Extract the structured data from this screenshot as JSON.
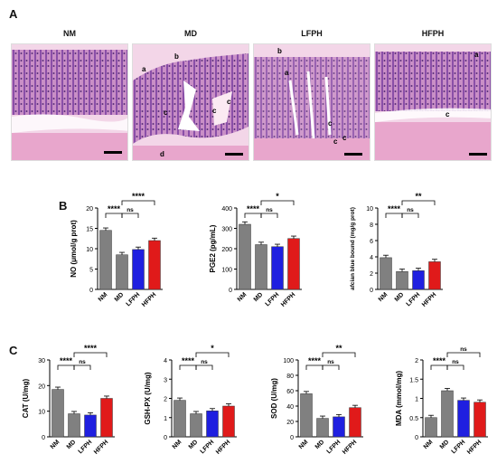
{
  "panels": {
    "A": "A",
    "B": "B",
    "C": "C"
  },
  "histology": [
    {
      "title": "NM",
      "annotations": []
    },
    {
      "title": "MD",
      "annotations": [
        "a",
        "b",
        "c",
        "c",
        "c",
        "d"
      ]
    },
    {
      "title": "LFPH",
      "annotations": [
        "b",
        "a",
        "c",
        "c",
        "c"
      ]
    },
    {
      "title": "HFPH",
      "annotations": [
        "a",
        "c"
      ]
    }
  ],
  "colors": {
    "NM": "#808080",
    "MD": "#808080",
    "LFPH": "#1f1fe0",
    "HFPH": "#e01a1a",
    "tissue_pink": "#e9a9cf",
    "tissue_purple": "#8a4fa8"
  },
  "chart_data": [
    {
      "type": "bar",
      "panel": "B",
      "categories": [
        "NM",
        "MD",
        "LFPH",
        "HFPH"
      ],
      "values": [
        14.5,
        8.5,
        9.8,
        12
      ],
      "ylabel": "NO (μmol/g prot)",
      "yticks": [
        0,
        5,
        10,
        15,
        20
      ],
      "ylim": [
        0,
        20
      ],
      "significance": [
        {
          "from": "NM",
          "to": "MD",
          "label": "****"
        },
        {
          "from": "MD",
          "to": "LFPH",
          "label": "ns"
        },
        {
          "from": "MD",
          "to": "HFPH",
          "label": "****"
        }
      ]
    },
    {
      "type": "bar",
      "panel": "B",
      "categories": [
        "NM",
        "MD",
        "LFPH",
        "HFPH"
      ],
      "values": [
        320,
        220,
        210,
        250
      ],
      "ylabel": "PGE2 (pg/mL)",
      "yticks": [
        0,
        100,
        200,
        300,
        400
      ],
      "ylim": [
        0,
        400
      ],
      "significance": [
        {
          "from": "NM",
          "to": "MD",
          "label": "****"
        },
        {
          "from": "MD",
          "to": "LFPH",
          "label": "ns"
        },
        {
          "from": "MD",
          "to": "HFPH",
          "label": "*"
        }
      ]
    },
    {
      "type": "bar",
      "panel": "B",
      "categories": [
        "NM",
        "MD",
        "LFPH",
        "HFPH"
      ],
      "values": [
        3.9,
        2.2,
        2.3,
        3.4
      ],
      "ylabel": "afcian blue bound (mg/g prot)",
      "yticks": [
        0,
        2,
        4,
        6,
        8,
        10
      ],
      "ylim": [
        0,
        10
      ],
      "significance": [
        {
          "from": "NM",
          "to": "MD",
          "label": "****"
        },
        {
          "from": "MD",
          "to": "LFPH",
          "label": "ns"
        },
        {
          "from": "MD",
          "to": "HFPH",
          "label": "**"
        }
      ]
    },
    {
      "type": "bar",
      "panel": "C",
      "categories": [
        "NM",
        "MD",
        "LFPH",
        "HFPH"
      ],
      "values": [
        18.5,
        9,
        8.5,
        15
      ],
      "ylabel": "CAT (U/mg)",
      "yticks": [
        0,
        10,
        20,
        30
      ],
      "ylim": [
        0,
        30
      ],
      "significance": [
        {
          "from": "NM",
          "to": "MD",
          "label": "****"
        },
        {
          "from": "MD",
          "to": "LFPH",
          "label": "ns"
        },
        {
          "from": "MD",
          "to": "HFPH",
          "label": "****"
        }
      ]
    },
    {
      "type": "bar",
      "panel": "C",
      "categories": [
        "NM",
        "MD",
        "LFPH",
        "HFPH"
      ],
      "values": [
        1.9,
        1.2,
        1.35,
        1.6
      ],
      "ylabel": "GSH-PX (U/mg)",
      "yticks": [
        0,
        1,
        2,
        3,
        4
      ],
      "ylim": [
        0,
        4
      ],
      "significance": [
        {
          "from": "NM",
          "to": "MD",
          "label": "****"
        },
        {
          "from": "MD",
          "to": "LFPH",
          "label": "ns"
        },
        {
          "from": "MD",
          "to": "HFPH",
          "label": "*"
        }
      ]
    },
    {
      "type": "bar",
      "panel": "C",
      "categories": [
        "NM",
        "MD",
        "LFPH",
        "HFPH"
      ],
      "values": [
        56,
        24,
        26,
        38
      ],
      "ylabel": "SOD (U/mg)",
      "yticks": [
        0,
        20,
        40,
        60,
        80,
        100
      ],
      "ylim": [
        0,
        100
      ],
      "significance": [
        {
          "from": "NM",
          "to": "MD",
          "label": "****"
        },
        {
          "from": "MD",
          "to": "LFPH",
          "label": "ns"
        },
        {
          "from": "MD",
          "to": "HFPH",
          "label": "**"
        }
      ]
    },
    {
      "type": "bar",
      "panel": "C",
      "categories": [
        "NM",
        "MD",
        "LFPH",
        "HFPH"
      ],
      "values": [
        0.5,
        1.2,
        0.95,
        0.9
      ],
      "ylabel": "MDA (mmol/mg)",
      "yticks": [
        0,
        0.5,
        1.0,
        1.5,
        2.0
      ],
      "ylim": [
        0,
        2
      ],
      "significance": [
        {
          "from": "NM",
          "to": "MD",
          "label": "****"
        },
        {
          "from": "MD",
          "to": "LFPH",
          "label": "ns"
        },
        {
          "from": "MD",
          "to": "HFPH",
          "label": "ns"
        }
      ]
    }
  ]
}
